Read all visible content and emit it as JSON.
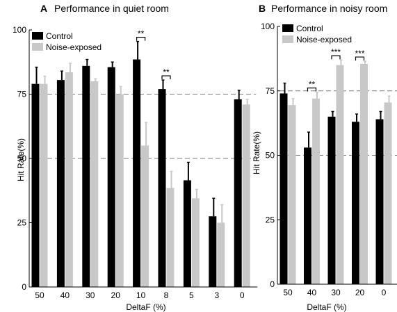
{
  "chart_data": [
    {
      "type": "bar",
      "panel_label": "A",
      "title": "Performance in quiet room",
      "xlabel": "DeltaF (%)",
      "ylabel": "Hit Rate(%)",
      "ylim": [
        0,
        100
      ],
      "yticks": [
        0,
        25,
        50,
        75,
        100
      ],
      "reference_lines": [
        50,
        75
      ],
      "legend_position": "top-left",
      "categories": [
        "50",
        "40",
        "30",
        "20",
        "10",
        "8",
        "5",
        "3",
        "0"
      ],
      "series": [
        {
          "name": "Control",
          "color": "#000000",
          "values": [
            79,
            80.5,
            86,
            85.5,
            88.5,
            77,
            41.5,
            27.5,
            73
          ],
          "errors": [
            6.5,
            3.5,
            2.5,
            2,
            7,
            3.5,
            7,
            7,
            3.5
          ]
        },
        {
          "name": "Noise-exposed",
          "color": "#c8c8c8",
          "values": [
            79,
            83.5,
            80,
            75,
            55,
            38.5,
            34.5,
            25,
            71
          ],
          "errors": [
            3,
            3.5,
            1,
            3,
            9,
            6.5,
            3.5,
            7,
            2
          ]
        }
      ],
      "significance": [
        {
          "category_index": 4,
          "label": "**"
        },
        {
          "category_index": 5,
          "label": "**"
        }
      ]
    },
    {
      "type": "bar",
      "panel_label": "B",
      "title": "Performance in noisy room",
      "xlabel": "DeltaF (%)",
      "ylabel": "Hit Rate(%)",
      "ylim": [
        0,
        100
      ],
      "yticks": [
        0,
        25,
        50,
        75,
        100
      ],
      "reference_lines": [
        50,
        75
      ],
      "legend_position": "top-left",
      "categories": [
        "50",
        "40",
        "30",
        "20",
        "0"
      ],
      "series": [
        {
          "name": "Control",
          "color": "#000000",
          "values": [
            74,
            53,
            65,
            63,
            64
          ],
          "errors": [
            4,
            6,
            2,
            3,
            3
          ]
        },
        {
          "name": "Noise-exposed",
          "color": "#c8c8c8",
          "values": [
            69.5,
            72,
            85,
            85.5,
            70.5
          ],
          "errors": [
            2.5,
            2.5,
            2,
            1,
            2.5
          ]
        }
      ],
      "significance": [
        {
          "category_index": 1,
          "label": "**"
        },
        {
          "category_index": 2,
          "label": "***"
        },
        {
          "category_index": 3,
          "label": "***"
        }
      ]
    }
  ]
}
